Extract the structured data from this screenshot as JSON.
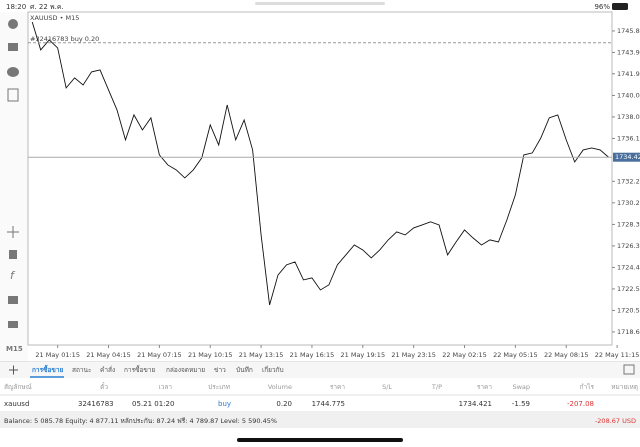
{
  "status_bar": {
    "time": "18:20",
    "date": "ศ. 22 พ.ค.",
    "battery": "96%"
  },
  "chart_data": {
    "type": "line",
    "title": "XAUUSD • M15",
    "timeframe": "M15",
    "color": "#111111",
    "values": [
      1746.66,
      1744.13,
      1745.03,
      1744.31,
      1740.69,
      1741.6,
      1740.96,
      1742.14,
      1742.32,
      1740.51,
      1738.7,
      1735.99,
      1738.25,
      1736.89,
      1737.98,
      1734.63,
      1733.72,
      1733.27,
      1732.55,
      1733.27,
      1734.36,
      1737.34,
      1735.53,
      1739.15,
      1735.99,
      1737.79,
      1735.08,
      1727.39,
      1721.05,
      1723.77,
      1724.68,
      1724.95,
      1723.32,
      1723.5,
      1722.41,
      1722.87,
      1724.68,
      1725.58,
      1726.48,
      1726.03,
      1725.31,
      1726.03,
      1726.94,
      1727.66,
      1727.39,
      1728.02,
      1728.29,
      1728.57,
      1728.29,
      1725.58,
      1726.75,
      1727.84,
      1727.12,
      1726.48,
      1726.94,
      1726.75,
      1728.75,
      1731.01,
      1734.63,
      1734.81,
      1736.16,
      1737.98,
      1738.25,
      1735.99,
      1733.99,
      1735.08,
      1735.26,
      1735.08,
      1734.42
    ],
    "xlim": [
      -0.5,
      68.4
    ],
    "ylim": [
      1717.43,
      1747.56
    ],
    "yticks": [
      1745.845,
      {
        "value": 1743.9,
        "label": "1743.900"
      },
      {
        "value": 1741.97,
        "label": "1741.970"
      },
      {
        "value": 1740.01,
        "label": "1740.010"
      },
      1738.065,
      {
        "value": 1736.12,
        "label": "1736.120"
      },
      {
        "value": 1732.24,
        "label": "1732.240"
      },
      1730.295,
      {
        "value": 1728.34,
        "label": "1728.340"
      },
      1726.395,
      {
        "value": 1724.45,
        "label": "1724.450"
      },
      1722.505,
      {
        "value": 1720.56,
        "label": "1720.560"
      },
      1718.615
    ],
    "xticks": [
      {
        "value": 3,
        "label": "21 May 01:15"
      },
      {
        "value": 9,
        "label": "21 May 04:15"
      },
      {
        "value": 15,
        "label": "21 May 07:15"
      },
      {
        "value": 21,
        "label": "21 May 10:15"
      },
      {
        "value": 27,
        "label": "21 May 13:15"
      },
      {
        "value": 33,
        "label": "21 May 16:15"
      },
      {
        "value": 39,
        "label": "21 May 19:15"
      },
      {
        "value": 45,
        "label": "21 May 23:15"
      },
      {
        "value": 51,
        "label": "22 May 02:15"
      },
      {
        "value": 57,
        "label": "22 May 05:15"
      },
      {
        "value": 63,
        "label": "22 May 08:15"
      },
      {
        "value": 69,
        "label": "22 May 11:15"
      }
    ],
    "order_line": {
      "label": "#32416783 buy 0.20",
      "value": 1744.775
    },
    "last_price": 1734.421
  },
  "tabs": [
    "การซื้อขาย",
    "สถานะ",
    "คำสั่ง",
    "การซื้อขาย",
    "กล่องจดหมาย",
    "ข่าว",
    "บันทึก",
    "เกี่ยวกับ"
  ],
  "table": {
    "header": [
      "สัญลักษณ์",
      "ตั๋ว",
      "เวลา",
      "ประเภท",
      "Volume",
      "ราคา",
      "S/L",
      "T/P",
      "ราคา",
      "Swap",
      "กำไร",
      "หมายเหตุ"
    ],
    "rows": [
      [
        "xauusd",
        "32416783",
        "05.21 01:20",
        "buy",
        "0.20",
        "1744.775",
        "1734.421",
        "-1.59",
        "-207.08"
      ]
    ]
  },
  "footer": {
    "summary": "Balance: 5 085.78 Equity: 4 877.11 หลักประกัน: 87.24 ฟรี: 4 789.87 Level: 5 590.45%",
    "total": "-208.67 USD"
  }
}
